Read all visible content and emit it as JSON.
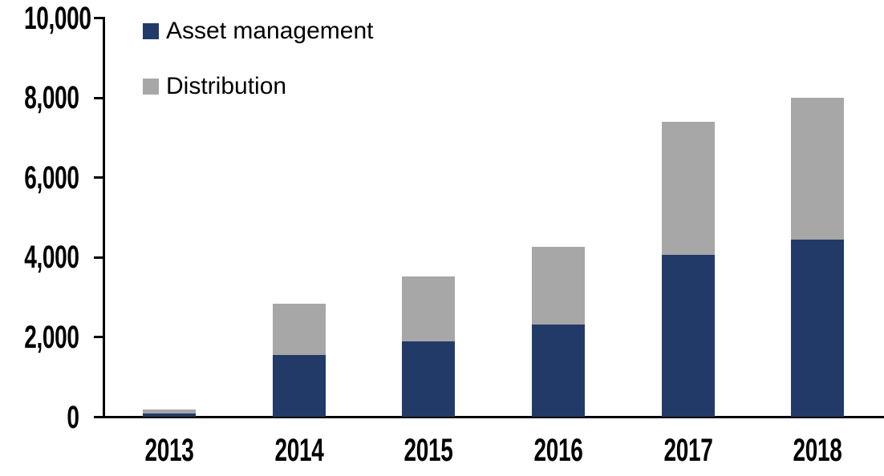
{
  "chart_data": {
    "type": "bar",
    "stacked": true,
    "categories": [
      "2013",
      "2014",
      "2015",
      "2016",
      "2017",
      "2018"
    ],
    "series": [
      {
        "name": "Asset management",
        "color": "#223A67",
        "values": [
          100,
          1550,
          1890,
          2310,
          4060,
          4440
        ]
      },
      {
        "name": "Distribution",
        "color": "#A7A7A7",
        "values": [
          100,
          1300,
          1630,
          1950,
          3340,
          3560
        ]
      }
    ],
    "title": "",
    "xlabel": "",
    "ylabel": "",
    "ylim": [
      0,
      10000
    ],
    "yticks": [
      0,
      2000,
      4000,
      6000,
      8000,
      10000
    ],
    "ytick_labels": [
      "0",
      "2,000",
      "4,000",
      "6,000",
      "8,000",
      "10,000"
    ],
    "legend_position": "top-left",
    "grid": false,
    "background": "#FFFFFF",
    "axis_color": "#000000",
    "text_color": "#000000"
  }
}
